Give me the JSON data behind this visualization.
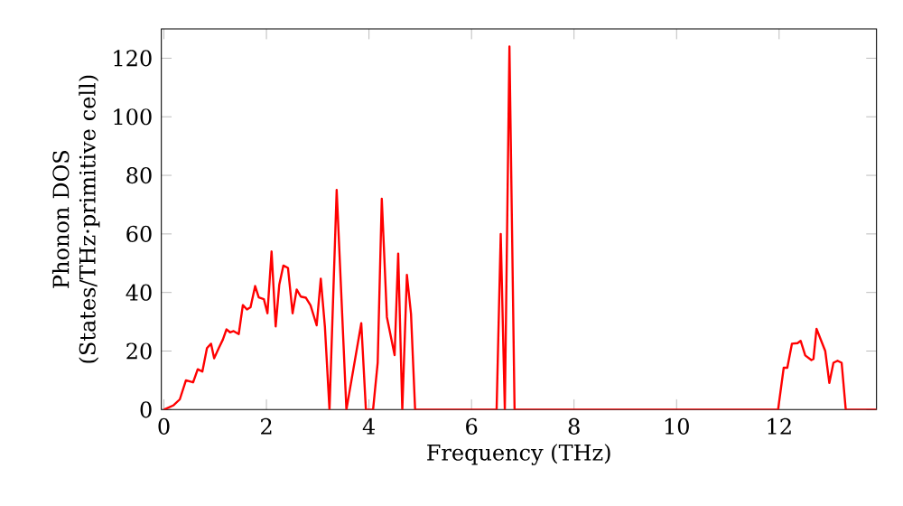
{
  "chart_data": {
    "type": "line",
    "xlabel": "Frequency (THz)",
    "ylabel": "Phonon DOS\n(States/THz·primitive cell)",
    "xlim": [
      -0.05,
      13.9
    ],
    "ylim": [
      0,
      130
    ],
    "xticks": [
      0,
      2,
      4,
      6,
      8,
      10,
      12
    ],
    "yticks": [
      0,
      20,
      40,
      60,
      80,
      100,
      120
    ],
    "grid": false,
    "marker": "none",
    "line_style": "solid",
    "series": [
      {
        "color": "#ff0000",
        "x": [
          0,
          0.19,
          0.31,
          0.43,
          0.57,
          0.66,
          0.75,
          0.84,
          0.92,
          0.98,
          1.07,
          1.15,
          1.22,
          1.29,
          1.36,
          1.46,
          1.54,
          1.62,
          1.69,
          1.78,
          1.85,
          1.95,
          2.02,
          2.1,
          2.18,
          2.25,
          2.33,
          2.42,
          2.51,
          2.59,
          2.67,
          2.77,
          2.86,
          2.98,
          3.06,
          3.14,
          3.23,
          3.37,
          3.56,
          3.85,
          3.94,
          4.08,
          4.17,
          4.25,
          4.35,
          4.5,
          4.57,
          4.65,
          4.74,
          4.82,
          4.9,
          6.49,
          6.57,
          6.65,
          6.74,
          6.84,
          11.98,
          12.09,
          12.16,
          12.25,
          12.36,
          12.42,
          12.51,
          12.63,
          12.67,
          12.73,
          12.81,
          12.9,
          12.98,
          13.06,
          13.14,
          13.22,
          13.3,
          13.9
        ],
        "values": [
          0,
          1.5,
          3.5,
          10,
          9.3,
          13.8,
          13,
          21,
          22.5,
          17.5,
          21,
          23.9,
          27.4,
          26.4,
          26.8,
          25.8,
          35.7,
          34.2,
          35,
          42.2,
          38.3,
          37.7,
          32.9,
          54,
          28.4,
          42.6,
          49.2,
          48.4,
          32.9,
          41,
          38.6,
          38.2,
          35.6,
          28.8,
          44.7,
          28.4,
          0,
          75,
          0,
          29.5,
          0,
          0,
          16,
          72,
          31.6,
          18.6,
          53.3,
          0,
          46,
          32.7,
          0,
          0,
          60,
          0,
          124,
          0,
          0,
          14.3,
          14.3,
          22.5,
          22.7,
          23.5,
          18.5,
          16.9,
          17.3,
          27.6,
          24,
          20,
          9.1,
          16,
          16.7,
          16,
          0,
          0
        ]
      }
    ]
  }
}
